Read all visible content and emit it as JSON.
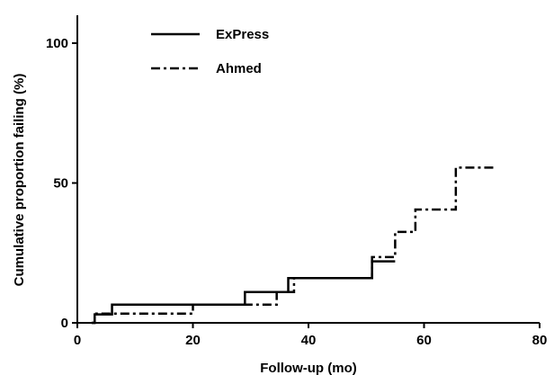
{
  "chart_data": {
    "type": "line",
    "xlabel": "Follow-up (mo)",
    "ylabel": "Cumulative proportion failing (%)",
    "xlim": [
      0,
      80
    ],
    "ylim": [
      0,
      100
    ],
    "x_ticks": [
      "0",
      "20",
      "40",
      "60",
      "80"
    ],
    "y_ticks": [
      "0",
      "50",
      "100"
    ],
    "grid": false,
    "legend_position": "top-left",
    "series": [
      {
        "name": "ExPress",
        "style": "solid",
        "color": "#000000",
        "step_x": [
          2.5,
          3,
          6,
          28,
          29,
          36.5,
          51,
          55
        ],
        "step_y": [
          0,
          3,
          6.5,
          6.5,
          11,
          16,
          22,
          22
        ]
      },
      {
        "name": "Ahmed",
        "style": "dash-dot",
        "color": "#000000",
        "step_x": [
          2.5,
          3,
          19.5,
          20,
          34.5,
          37.5,
          51,
          55,
          58.5,
          65.5,
          72
        ],
        "step_y": [
          0,
          3.3,
          3.3,
          6.5,
          11,
          16,
          23.5,
          32.5,
          40.5,
          55.5,
          55.5
        ]
      }
    ]
  }
}
